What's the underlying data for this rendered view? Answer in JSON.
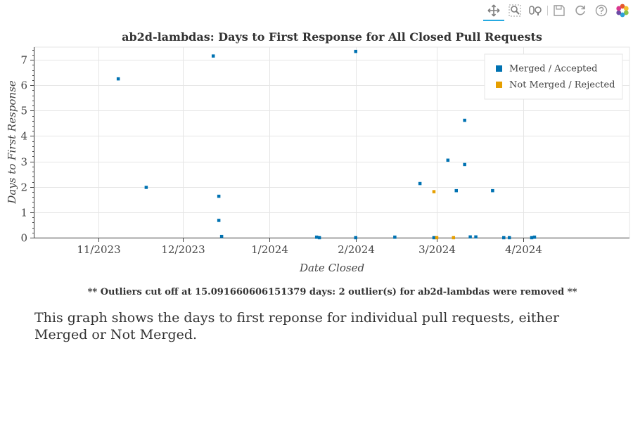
{
  "toolbar": {
    "tools": [
      {
        "name": "pan-icon",
        "active": true
      },
      {
        "name": "box-zoom-icon",
        "active": false
      },
      {
        "name": "wheel-zoom-icon",
        "active": false
      },
      {
        "name": "save-icon",
        "active": false
      },
      {
        "name": "reset-icon",
        "active": false
      },
      {
        "name": "help-icon",
        "active": false
      },
      {
        "name": "bokeh-logo-icon",
        "active": false
      }
    ]
  },
  "chart_data": {
    "type": "scatter",
    "title": "ab2d-lambdas: Days to First Response for All Closed Pull Requests",
    "xlabel": "Date Closed",
    "ylabel": "Days to First Response",
    "xlim": [
      "2023-10-09",
      "2024-05-09"
    ],
    "ylim": [
      0,
      7.5
    ],
    "x_ticks": [
      {
        "date": "2023-11-01",
        "label": "11/2023"
      },
      {
        "date": "2023-12-01",
        "label": "12/2023"
      },
      {
        "date": "2024-01-01",
        "label": "1/2024"
      },
      {
        "date": "2024-02-01",
        "label": "2/2024"
      },
      {
        "date": "2024-03-01",
        "label": "3/2024"
      },
      {
        "date": "2024-04-01",
        "label": "4/2024"
      }
    ],
    "y_ticks": [
      0,
      1,
      2,
      3,
      4,
      5,
      6,
      7
    ],
    "grid": true,
    "legend_position": "top-right",
    "series": [
      {
        "name": "Merged / Accepted",
        "color": "#0072b2",
        "points": [
          {
            "x": "2023-11-08",
            "y": 6.25
          },
          {
            "x": "2023-11-18",
            "y": 1.98
          },
          {
            "x": "2023-12-12",
            "y": 7.15
          },
          {
            "x": "2023-12-14",
            "y": 1.63
          },
          {
            "x": "2023-12-14",
            "y": 0.68
          },
          {
            "x": "2023-12-15",
            "y": 0.05
          },
          {
            "x": "2024-01-18",
            "y": 0.02
          },
          {
            "x": "2024-01-19",
            "y": 0.0
          },
          {
            "x": "2024-02-01",
            "y": 7.33
          },
          {
            "x": "2024-02-01",
            "y": 0.0
          },
          {
            "x": "2024-02-15",
            "y": 0.02
          },
          {
            "x": "2024-02-24",
            "y": 2.13
          },
          {
            "x": "2024-02-29",
            "y": 0.0
          },
          {
            "x": "2024-03-05",
            "y": 3.05
          },
          {
            "x": "2024-03-08",
            "y": 1.85
          },
          {
            "x": "2024-03-11",
            "y": 4.62
          },
          {
            "x": "2024-03-11",
            "y": 2.88
          },
          {
            "x": "2024-03-13",
            "y": 0.03
          },
          {
            "x": "2024-03-15",
            "y": 0.03
          },
          {
            "x": "2024-03-21",
            "y": 1.85
          },
          {
            "x": "2024-03-25",
            "y": 0.0
          },
          {
            "x": "2024-03-27",
            "y": 0.0
          },
          {
            "x": "2024-04-04",
            "y": 0.0
          },
          {
            "x": "2024-04-05",
            "y": 0.02
          }
        ]
      },
      {
        "name": "Not Merged / Rejected",
        "color": "#e69f00",
        "points": [
          {
            "x": "2024-02-29",
            "y": 1.81
          },
          {
            "x": "2024-03-01",
            "y": 0.0
          },
          {
            "x": "2024-03-07",
            "y": 0.0
          }
        ]
      }
    ]
  },
  "note": "** Outliers cut off at 15.091660606151379 days: 2 outlier(s) for ab2d-lambdas were removed **",
  "description": "This graph shows the days to first reponse for individual pull requests, either Merged or Not Merged."
}
